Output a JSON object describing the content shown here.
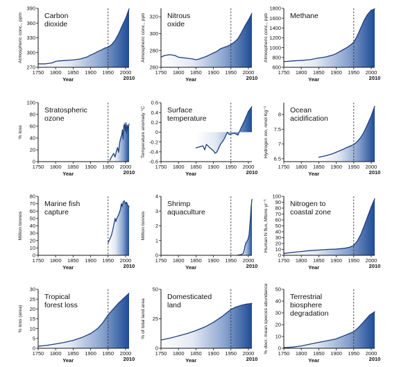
{
  "chart_data": [
    {
      "type": "area",
      "title_lines": [
        "Carbon",
        "dioxide"
      ],
      "ylabel": "Atmospheric conc., ppm",
      "xlabel": "Year",
      "xlim": [
        1750,
        2010
      ],
      "ylim": [
        270,
        390
      ],
      "yticks": [
        270,
        300,
        330,
        360,
        390
      ],
      "xticks": [
        1750,
        1800,
        1850,
        1900,
        1950,
        2000
      ],
      "end_label": "2010",
      "marker_x": 1950,
      "x": [
        1750,
        1770,
        1790,
        1800,
        1810,
        1830,
        1850,
        1870,
        1890,
        1900,
        1910,
        1920,
        1930,
        1940,
        1950,
        1960,
        1970,
        1980,
        1990,
        2000,
        2010
      ],
      "y": [
        277,
        277,
        279,
        282,
        283,
        284,
        285,
        287,
        291,
        295,
        298,
        302,
        305,
        309,
        311,
        316,
        325,
        338,
        354,
        369,
        389
      ]
    },
    {
      "type": "area",
      "title_lines": [
        "Nitrous",
        "oxide"
      ],
      "ylabel": "Atmospheric conc., ppb",
      "xlabel": "Year",
      "xlim": [
        1750,
        2010
      ],
      "ylim": [
        260,
        330
      ],
      "yticks": [
        260,
        280,
        300,
        320
      ],
      "xticks": [
        1750,
        1800,
        1850,
        1900,
        1950,
        2000
      ],
      "end_label": "2010",
      "marker_x": 1950,
      "x": [
        1750,
        1760,
        1775,
        1790,
        1800,
        1820,
        1840,
        1850,
        1860,
        1880,
        1900,
        1910,
        1920,
        1940,
        1950,
        1960,
        1970,
        1980,
        1990,
        2000,
        2010
      ],
      "y": [
        272,
        274,
        275,
        274,
        272,
        271,
        270,
        269,
        270,
        273,
        277,
        279,
        282,
        285,
        287,
        290,
        294,
        301,
        309,
        316,
        324
      ]
    },
    {
      "type": "area",
      "title_lines": [
        "Methane"
      ],
      "ylabel": "Atmospheric conc., ppb",
      "xlabel": "Year",
      "xlim": [
        1750,
        2010
      ],
      "ylim": [
        600,
        1800
      ],
      "yticks": [
        600,
        800,
        1000,
        1200,
        1400,
        1600,
        1800
      ],
      "xticks": [
        1750,
        1800,
        1850,
        1900,
        1950,
        2000
      ],
      "end_label": "2010",
      "marker_x": 1950,
      "x": [
        1750,
        1775,
        1800,
        1825,
        1850,
        1870,
        1890,
        1900,
        1910,
        1920,
        1930,
        1940,
        1950,
        1960,
        1970,
        1980,
        1990,
        2000,
        2010
      ],
      "y": [
        715,
        730,
        740,
        755,
        790,
        810,
        850,
        880,
        920,
        960,
        1000,
        1050,
        1110,
        1240,
        1400,
        1560,
        1680,
        1760,
        1790
      ]
    },
    {
      "type": "area",
      "title_lines": [
        "Stratospheric",
        "ozone"
      ],
      "ylabel": "% loss",
      "xlabel": "Year",
      "xlim": [
        1750,
        2010
      ],
      "ylim": [
        0,
        100
      ],
      "yticks": [
        0,
        20,
        40,
        60,
        80,
        100
      ],
      "xticks": [
        1750,
        1800,
        1850,
        1900,
        1950,
        2000
      ],
      "end_label": "2010",
      "marker_x": 1950,
      "x": [
        1955,
        1958,
        1962,
        1966,
        1970,
        1974,
        1977,
        1980,
        1983,
        1986,
        1989,
        1991,
        1993,
        1995,
        1997,
        1999,
        2001,
        2003,
        2005,
        2007,
        2010
      ],
      "y": [
        2,
        6,
        10,
        14,
        8,
        18,
        24,
        16,
        32,
        40,
        45,
        54,
        38,
        60,
        64,
        52,
        66,
        48,
        62,
        56,
        64
      ]
    },
    {
      "type": "area",
      "title_lines": [
        "Surface",
        "temperature"
      ],
      "ylabel": "Temperature anomaly °C",
      "xlabel": "Year",
      "xlim": [
        1750,
        2010
      ],
      "ylim": [
        -0.6,
        0.6
      ],
      "yticks": [
        -0.6,
        -0.4,
        -0.2,
        0,
        0.2,
        0.4,
        0.6
      ],
      "xticks": [
        1750,
        1800,
        1850,
        1900,
        1950,
        2000
      ],
      "end_label": "2010",
      "marker_x": 1950,
      "baseline": 0,
      "x": [
        1850,
        1860,
        1870,
        1875,
        1880,
        1890,
        1900,
        1905,
        1910,
        1920,
        1930,
        1940,
        1945,
        1950,
        1960,
        1970,
        1980,
        1990,
        2000,
        2010
      ],
      "y": [
        -0.32,
        -0.3,
        -0.28,
        -0.36,
        -0.25,
        -0.32,
        -0.38,
        -0.43,
        -0.4,
        -0.25,
        -0.15,
        0.0,
        -0.05,
        -0.04,
        -0.02,
        -0.06,
        0.1,
        0.25,
        0.42,
        0.52
      ]
    },
    {
      "type": "area",
      "title_lines": [
        "Ocean",
        "acidification"
      ],
      "ylabel": "Hydrogen ion, nmol Kg⁻¹",
      "xlabel": "Year",
      "xlim": [
        1750,
        2010
      ],
      "ylim": [
        6.4,
        8.4
      ],
      "yticks": [
        6.5,
        7.0,
        7.5,
        8.0
      ],
      "xticks": [
        1750,
        1800,
        1850,
        1900,
        1950,
        2000
      ],
      "end_label": "2010",
      "marker_x": 1950,
      "x": [
        1850,
        1870,
        1890,
        1900,
        1910,
        1920,
        1930,
        1940,
        1950,
        1960,
        1970,
        1980,
        1990,
        2000,
        2010
      ],
      "y": [
        6.55,
        6.6,
        6.67,
        6.72,
        6.77,
        6.82,
        6.88,
        6.93,
        6.98,
        7.08,
        7.22,
        7.42,
        7.68,
        7.95,
        8.28
      ]
    },
    {
      "type": "area",
      "title_lines": [
        "Marine fish",
        "capture"
      ],
      "ylabel": "Million tonnes",
      "xlabel": "Year",
      "xlim": [
        1750,
        2010
      ],
      "ylim": [
        0,
        80
      ],
      "yticks": [
        0,
        10,
        20,
        30,
        40,
        50,
        60,
        70,
        80
      ],
      "xticks": [
        1750,
        1800,
        1850,
        1900,
        1950,
        2000
      ],
      "end_label": "2010",
      "marker_x": 1950,
      "x": [
        1950,
        1955,
        1960,
        1965,
        1970,
        1972,
        1975,
        1980,
        1985,
        1988,
        1990,
        1993,
        1996,
        2000,
        2003,
        2006,
        2010
      ],
      "y": [
        17,
        22,
        28,
        38,
        50,
        46,
        50,
        55,
        62,
        70,
        66,
        72,
        74,
        70,
        72,
        68,
        66
      ]
    },
    {
      "type": "area",
      "title_lines": [
        "Shrimp",
        "aquaculture"
      ],
      "ylabel": "Million tonnes",
      "xlabel": "Year",
      "xlim": [
        1750,
        2010
      ],
      "ylim": [
        0,
        4
      ],
      "yticks": [
        0,
        1,
        2,
        3,
        4
      ],
      "xticks": [
        1750,
        1800,
        1850,
        1900,
        1950,
        2000
      ],
      "end_label": "2010",
      "marker_x": 1950,
      "x": [
        1970,
        1975,
        1980,
        1985,
        1988,
        1990,
        1993,
        1996,
        1999,
        2002,
        2004,
        2006,
        2008,
        2010
      ],
      "y": [
        0.02,
        0.03,
        0.05,
        0.12,
        0.35,
        0.6,
        0.85,
        0.95,
        1.1,
        1.4,
        2.0,
        2.6,
        3.3,
        3.8
      ]
    },
    {
      "type": "area",
      "title_lines": [
        "Nitrogen to",
        "coastal zone"
      ],
      "ylabel": "Human N flux, Mtons yr⁻¹",
      "xlabel": "Year",
      "xlim": [
        1750,
        2010
      ],
      "ylim": [
        0,
        100
      ],
      "yticks": [
        0,
        10,
        20,
        30,
        40,
        50,
        60,
        70,
        80,
        90,
        100
      ],
      "xticks": [
        1750,
        1800,
        1850,
        1900,
        1950,
        2000
      ],
      "end_label": "2010",
      "marker_x": 1950,
      "x": [
        1750,
        1775,
        1800,
        1825,
        1850,
        1875,
        1900,
        1925,
        1940,
        1950,
        1960,
        1970,
        1980,
        1990,
        2000,
        2010
      ],
      "y": [
        3,
        5,
        6.5,
        8,
        9,
        10,
        10.5,
        12,
        14,
        17,
        24,
        35,
        50,
        66,
        82,
        96
      ]
    },
    {
      "type": "area",
      "title_lines": [
        "Tropical",
        "forest loss"
      ],
      "ylabel": "% loss (area)",
      "xlabel": "Year",
      "xlim": [
        1750,
        2010
      ],
      "ylim": [
        0,
        30
      ],
      "yticks": [
        0,
        5,
        10,
        15,
        20,
        25,
        30
      ],
      "xticks": [
        1750,
        1800,
        1850,
        1900,
        1950,
        2000
      ],
      "end_label": "2010",
      "marker_x": 1950,
      "x": [
        1750,
        1775,
        1800,
        1825,
        1850,
        1875,
        1900,
        1920,
        1935,
        1950,
        1965,
        1980,
        1995,
        2010
      ],
      "y": [
        1,
        1.5,
        2.2,
        3,
        4,
        5.5,
        7.5,
        10,
        13,
        17,
        20,
        23,
        25.5,
        28
      ]
    },
    {
      "type": "area",
      "title_lines": [
        "Domesticated",
        "land"
      ],
      "ylabel": "% of total land area",
      "xlabel": "Year",
      "xlim": [
        1750,
        2010
      ],
      "ylim": [
        0,
        50
      ],
      "yticks": [
        0,
        25,
        50
      ],
      "xticks": [
        1750,
        1800,
        1850,
        1900,
        1950,
        2000
      ],
      "end_label": "2010",
      "marker_x": 1950,
      "x": [
        1750,
        1775,
        1800,
        1825,
        1850,
        1875,
        1900,
        1925,
        1950,
        1965,
        1980,
        1995,
        2010
      ],
      "y": [
        7,
        8.5,
        10.5,
        12.5,
        15,
        18,
        22,
        27,
        33,
        35,
        36.5,
        37.5,
        38
      ]
    },
    {
      "type": "area",
      "title_lines": [
        "Terrestrial",
        "biosphere",
        "degradation"
      ],
      "ylabel": "% decr. mean species abundance",
      "xlabel": "Year",
      "xlim": [
        1750,
        2010
      ],
      "ylim": [
        0,
        50
      ],
      "yticks": [
        0,
        10,
        20,
        30,
        40,
        50
      ],
      "xticks": [
        1750,
        1800,
        1850,
        1900,
        1950,
        2000
      ],
      "end_label": "2010",
      "marker_x": 1950,
      "x": [
        1750,
        1775,
        1800,
        1825,
        1850,
        1875,
        1900,
        1925,
        1950,
        1965,
        1980,
        1995,
        2010
      ],
      "y": [
        0.5,
        1,
        2,
        3.5,
        5,
        6.5,
        8,
        11,
        14,
        18,
        23,
        28,
        31
      ]
    }
  ]
}
